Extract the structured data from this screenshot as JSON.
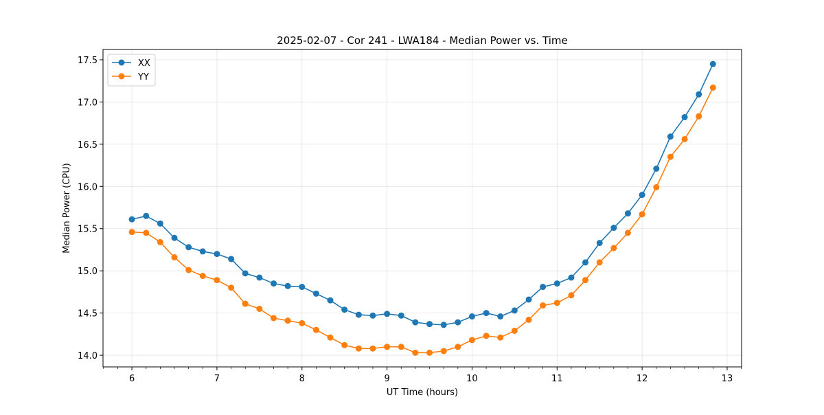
{
  "chart_data": {
    "type": "line",
    "title": "2025-02-07 - Cor 241 - LWA184 - Median Power vs. Time",
    "xlabel": "UT Time (hours)",
    "ylabel": "Median Power (CPU)",
    "xlim": [
      5.66,
      13.17
    ],
    "ylim": [
      13.862,
      17.622
    ],
    "xticks": [
      6,
      7,
      8,
      9,
      10,
      11,
      12,
      13
    ],
    "xtick_labels": [
      "6",
      "7",
      "8",
      "9",
      "10",
      "11",
      "12",
      "13"
    ],
    "yticks": [
      14.0,
      14.5,
      15.0,
      15.5,
      16.0,
      16.5,
      17.0,
      17.5
    ],
    "ytick_labels": [
      "14.0",
      "14.5",
      "15.0",
      "15.5",
      "16.0",
      "16.5",
      "17.0",
      "17.5"
    ],
    "grid": true,
    "legend_position": "top-left",
    "x": [
      6.0,
      6.167,
      6.333,
      6.5,
      6.667,
      6.833,
      7.0,
      7.167,
      7.333,
      7.5,
      7.667,
      7.833,
      8.0,
      8.167,
      8.333,
      8.5,
      8.667,
      8.833,
      9.0,
      9.167,
      9.333,
      9.5,
      9.667,
      9.833,
      10.0,
      10.167,
      10.333,
      10.5,
      10.667,
      10.833,
      11.0,
      11.167,
      11.333,
      11.5,
      11.667,
      11.833,
      12.0,
      12.167,
      12.333,
      12.5,
      12.667,
      12.833
    ],
    "series": [
      {
        "name": "XX",
        "color": "#1f77b4",
        "values": [
          15.61,
          15.65,
          15.56,
          15.39,
          15.28,
          15.23,
          15.2,
          15.14,
          14.97,
          14.92,
          14.85,
          14.82,
          14.81,
          14.73,
          14.65,
          14.54,
          14.48,
          14.47,
          14.49,
          14.47,
          14.39,
          14.37,
          14.36,
          14.39,
          14.46,
          14.5,
          14.46,
          14.53,
          14.66,
          14.81,
          14.85,
          14.92,
          15.1,
          15.33,
          15.51,
          15.68,
          15.9,
          16.21,
          16.59,
          16.82,
          17.09,
          17.45
        ]
      },
      {
        "name": "YY",
        "color": "#ff7f0e",
        "values": [
          15.46,
          15.45,
          15.34,
          15.16,
          15.01,
          14.94,
          14.89,
          14.8,
          14.61,
          14.55,
          14.44,
          14.41,
          14.38,
          14.3,
          14.21,
          14.12,
          14.08,
          14.08,
          14.1,
          14.1,
          14.03,
          14.03,
          14.05,
          14.1,
          14.18,
          14.23,
          14.21,
          14.29,
          14.42,
          14.59,
          14.62,
          14.71,
          14.89,
          15.1,
          15.27,
          15.45,
          15.67,
          15.99,
          16.35,
          16.56,
          16.83,
          17.17
        ]
      }
    ]
  }
}
